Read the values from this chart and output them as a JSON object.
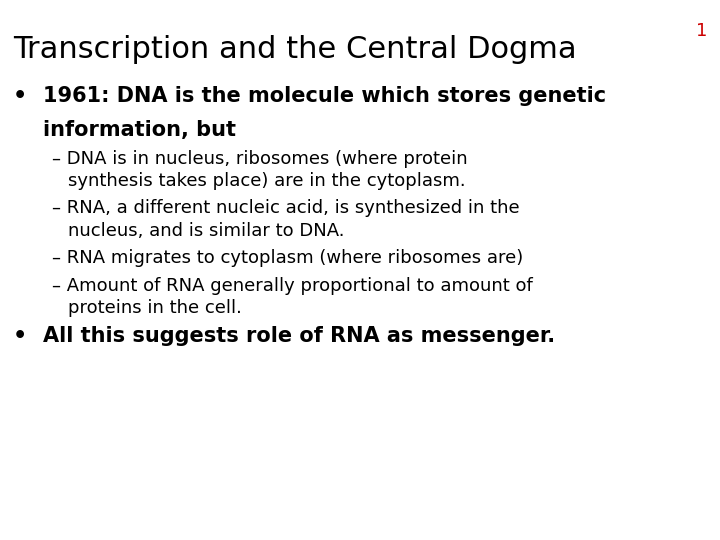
{
  "title": "Transcription and the Central Dogma",
  "slide_number": "1",
  "title_color": "#000000",
  "slide_number_color": "#cc0000",
  "background_color": "#ffffff",
  "title_fontsize": 22,
  "slide_number_fontsize": 13,
  "bullet_fontsize": 15,
  "sub_bullet_fontsize": 13,
  "bullet1_line1": "1961: DNA is the molecule which stores genetic",
  "bullet1_line2": "information, but",
  "sub_bullets": [
    [
      "– DNA is in nucleus, ribosomes (where protein",
      "   synthesis takes place) are in the cytoplasm."
    ],
    [
      "– RNA, a different nucleic acid, is synthesized in the",
      "   nucleus, and is similar to DNA."
    ],
    [
      "– RNA migrates to cytoplasm (where ribosomes are)"
    ],
    [
      "– Amount of RNA generally proportional to amount of",
      "   proteins in the cell."
    ]
  ],
  "bullet2": "All this suggests role of RNA as messenger.",
  "font_family": "DejaVu Sans"
}
